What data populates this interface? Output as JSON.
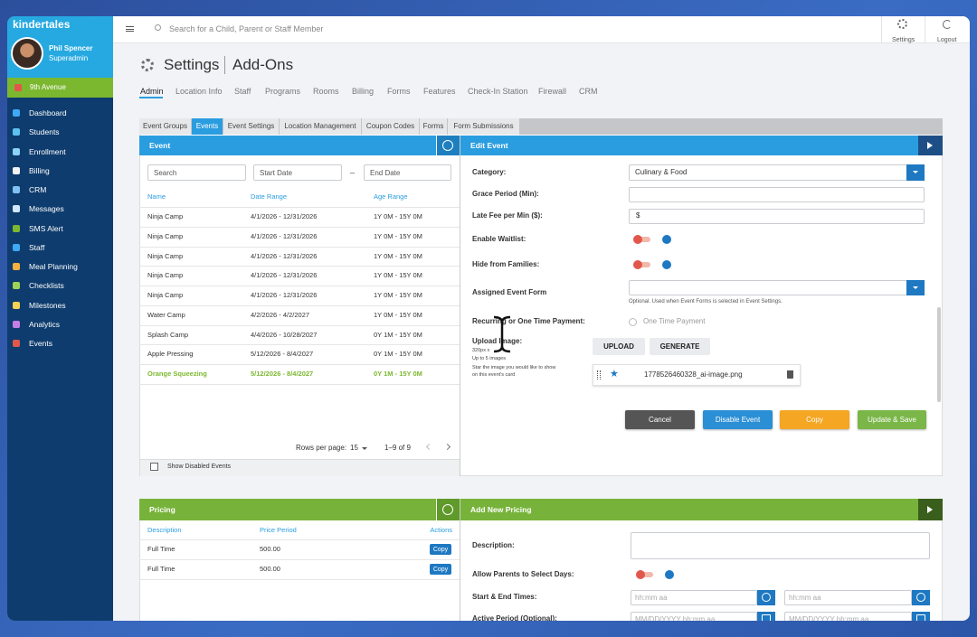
{
  "brand": "kindertales",
  "user": {
    "name": "Phil Spencer",
    "role": "Superadmin"
  },
  "location": "9th Avenue",
  "nav": [
    "Dashboard",
    "Students",
    "Enrollment",
    "Billing",
    "CRM",
    "Messages",
    "SMS Alert",
    "Staff",
    "Meal Planning",
    "Checklists",
    "Milestones",
    "Analytics",
    "Events"
  ],
  "header": {
    "search": "Search for a Child, Parent or Staff Member",
    "settings": "Settings",
    "logout": "Logout"
  },
  "page": {
    "title": "Settings",
    "subtitle": "Add-Ons"
  },
  "tabs": [
    "Admin",
    "Location Info",
    "Staff",
    "Programs",
    "Rooms",
    "Billing",
    "Forms",
    "Features",
    "Check-In Station",
    "Firewall",
    "CRM"
  ],
  "subtabs": [
    "Event Groups",
    "Events",
    "Event Settings",
    "Location Management",
    "Coupon Codes",
    "Forms",
    "Form Submissions"
  ],
  "event_panel": {
    "title": "Event",
    "filters": {
      "search": "Search",
      "start": "Start Date",
      "dash": "–",
      "end": "End Date"
    },
    "columns": [
      "Name",
      "Date Range",
      "Age Range"
    ],
    "rows": [
      [
        "Ninja Camp",
        "4/1/2026 - 12/31/2026",
        "1Y 0M - 15Y 0M"
      ],
      [
        "Ninja Camp",
        "4/1/2026 - 12/31/2026",
        "1Y 0M - 15Y 0M"
      ],
      [
        "Ninja Camp",
        "4/1/2026 - 12/31/2026",
        "1Y 0M - 15Y 0M"
      ],
      [
        "Ninja Camp",
        "4/1/2026 - 12/31/2026",
        "1Y 0M - 15Y 0M"
      ],
      [
        "Ninja Camp",
        "4/1/2026 - 12/31/2026",
        "1Y 0M - 15Y 0M"
      ],
      [
        "Water Camp",
        "4/2/2026 - 4/2/2027",
        "1Y 0M - 15Y 0M"
      ],
      [
        "Splash Camp",
        "4/4/2026 - 10/28/2027",
        "0Y 1M - 15Y 0M"
      ],
      [
        "Apple Pressing",
        "5/12/2026 - 8/4/2027",
        "0Y 1M - 15Y 0M"
      ],
      [
        "Orange Squeezing",
        "5/12/2026 - 8/4/2027",
        "0Y 1M - 15Y 0M"
      ]
    ],
    "rows_per_page_label": "Rows per page:",
    "rows_per_page": "15",
    "range": "1–9 of 9",
    "show_disabled": "Show Disabled Events"
  },
  "edit_panel": {
    "title": "Edit Event",
    "category_label": "Category:",
    "category": "Culinary & Food",
    "grace_label": "Grace Period (Min):",
    "late_fee_label": "Late Fee per Min ($):",
    "late_fee_prefix": "$",
    "waitlist_label": "Enable Waitlist:",
    "hide_label": "Hide from Families:",
    "form_label": "Assigned Event Form",
    "form_hint": "Optional. Used when Event Forms is selected in Event Settings.",
    "payment_label": "Recurring or One Time Payment:",
    "payment_option": "One Time Payment",
    "upload_label": "Upload Image:",
    "upload_notes": [
      "320px x",
      "Up to 5 images",
      "Star the image you would like to show",
      "on this event's card"
    ],
    "upload_button": "UPLOAD",
    "generate_button": "GENERATE",
    "file": "1778526460328_ai-image.png",
    "buttons": [
      "Cancel",
      "Disable Event",
      "Copy",
      "Update & Save"
    ]
  },
  "pricing_panel": {
    "title": "Pricing",
    "columns": [
      "Description",
      "Price Period",
      "Actions"
    ],
    "rows": [
      [
        "Full Time",
        "500.00",
        "Copy"
      ],
      [
        "Full Time",
        "500.00",
        "Copy"
      ]
    ]
  },
  "new_pricing_panel": {
    "title": "Add New Pricing",
    "description_label": "Description:",
    "days_label": "Allow Parents to Select Days:",
    "times_label": "Start & End Times:",
    "time_placeholders": [
      "hh:mm aa",
      "hh:mm aa"
    ],
    "period_label": "Active Period (Optional):",
    "period_placeholders": [
      "MM/DD/YYYY hh:mm aa",
      "MM/DD/YYYY hh:mm aa"
    ]
  }
}
